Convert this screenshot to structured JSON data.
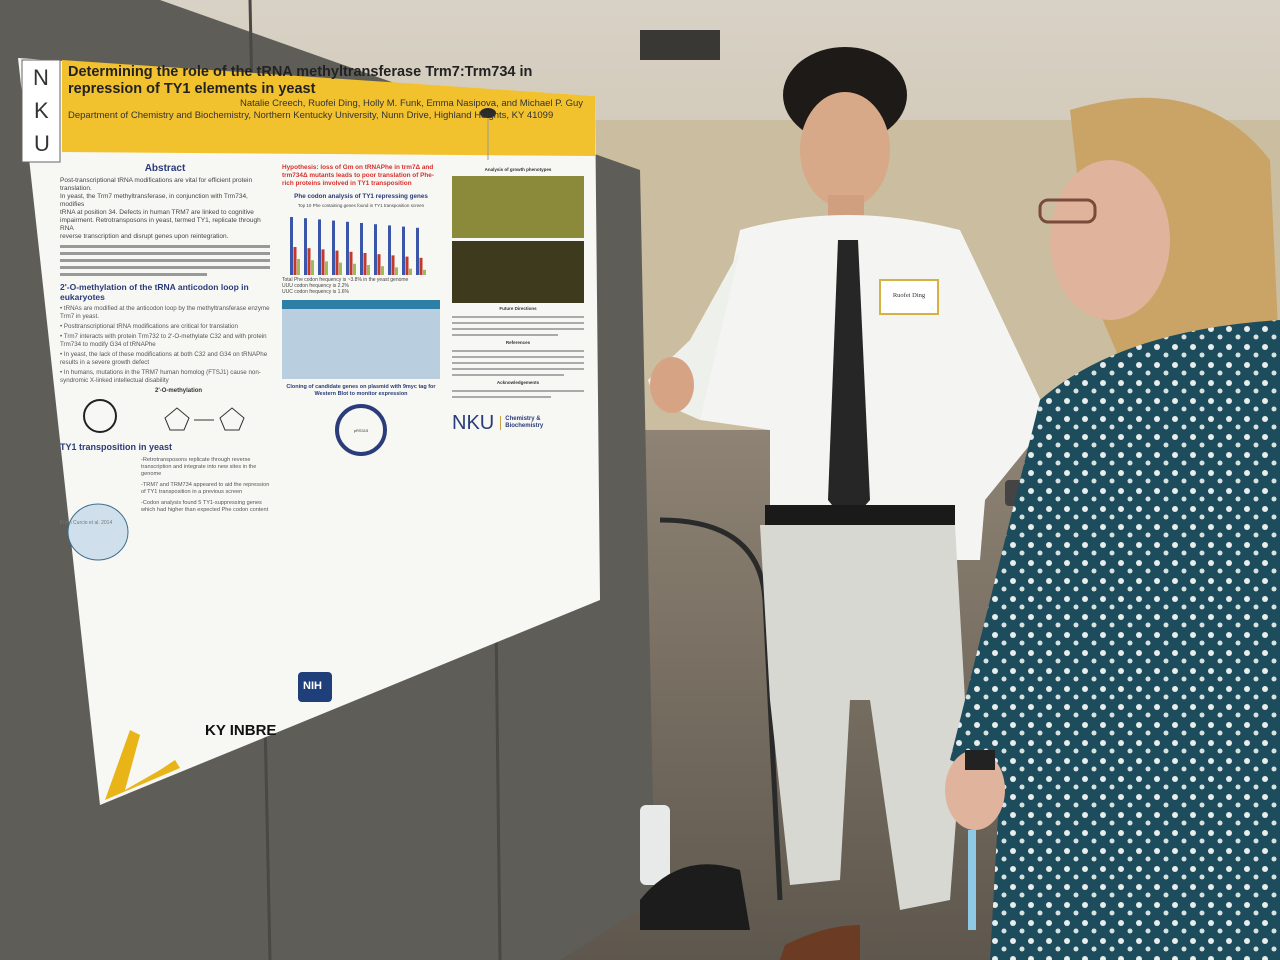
{
  "poster": {
    "logo_letters": [
      "N",
      "K",
      "U"
    ],
    "title": "Determining the role of the tRNA methyltransferase Trm7:Trm734 in repression of TY1 elements in yeast",
    "authors": "Natalie Creech, Ruofei Ding, Holly M. Funk, Emma Nasipova, and Michael P. Guy",
    "affiliation": "Department of Chemistry and Biochemistry, Northern Kentucky University, Nunn Drive, Highland Heights, KY 41099",
    "abstract_heading": "Abstract",
    "abstract_lines": [
      "Post-transcriptional tRNA modifications are vital for efficient protein translation.",
      "In yeast, the Trm7 methyltransferase, in conjunction with Trm734, modifies",
      "tRNA at position 34. Defects in human TRM7 are linked to cognitive",
      "impairment. Retrotransposons in yeast, termed TY1, replicate through RNA",
      "reverse transcription and disrupt genes upon reintegration."
    ],
    "methylation_heading": "2'-O-methylation of the tRNA anticodon loop in eukaryotes",
    "methylation_bullets": [
      "tRNAs are modified at the anticodon loop by the methyltransferase enzyme Trm7 in yeast.",
      "Posttranscriptional tRNA modifications are critical for translation",
      "Trm7 interacts with protein Trm732 to 2'-O-methylate C32 and with protein Trm734 to modify G34 of tRNAPhe",
      "In yeast, the lack of these modifications at both C32 and G34 on tRNAPhe results in a severe growth defect",
      "In humans, mutations in the TRM7 human homolog (FTSJ1) cause non-syndromic X-linked intellectual disability"
    ],
    "methylation_diagram_label": "2'-O-methylation",
    "ty1_heading": "TY1 transposition in yeast",
    "ty1_notes": [
      "-Retrotransposons replicate through reverse transcription and integrate into new sites in the genome",
      "-TRM7 and TRM734 appeared to aid the repression of TY1 transposition in a previous screen",
      "-Codon analysis found 5 TY1-suppressing genes which had higher than expected Phe codon content"
    ],
    "figure_credit": "From Curcio et al. 2014",
    "hypothesis": "Hypothesis: loss of Gm on tRNAPhe in trm7Δ and trm734Δ mutants leads to poor translation of Phe-rich proteins involved in TY1 transposition",
    "phe_heading": "Phe codon analysis of TY1 repressing genes",
    "phe_chart_title": "Top 10 Phe containing genes found in TY1 transposition screen",
    "phe_notes": [
      "Total Phe codon frequency is ~3.8% in the yeast genome",
      "UUU codon frequency is 2.2%",
      "UUC codon frequency is 1.6%"
    ],
    "growth_heading": "Analysis of growth phenotypes",
    "future_heading": "Future Directions",
    "references_heading": "References",
    "ack_heading": "Acknowledgements",
    "cloning_heading": "Cloning of candidate genes on plasmid with 9myc tag for Western Blot to monitor expression",
    "plasmid_label": "pRS315",
    "nku_logo": "NKU",
    "dept_logo": "Chemistry & Biochemistry",
    "kyinbre_logo": "KY INBRE",
    "nih_logo": "NIH"
  },
  "name_badge": "Ruofei Ding",
  "colors": {
    "poster_banner": "#f2c12e",
    "hypothesis_red": "#d8302c",
    "panel_gray": "#5f5d58",
    "shirt_white": "#f4f5f2",
    "dress_teal": "#1c4f5f"
  }
}
